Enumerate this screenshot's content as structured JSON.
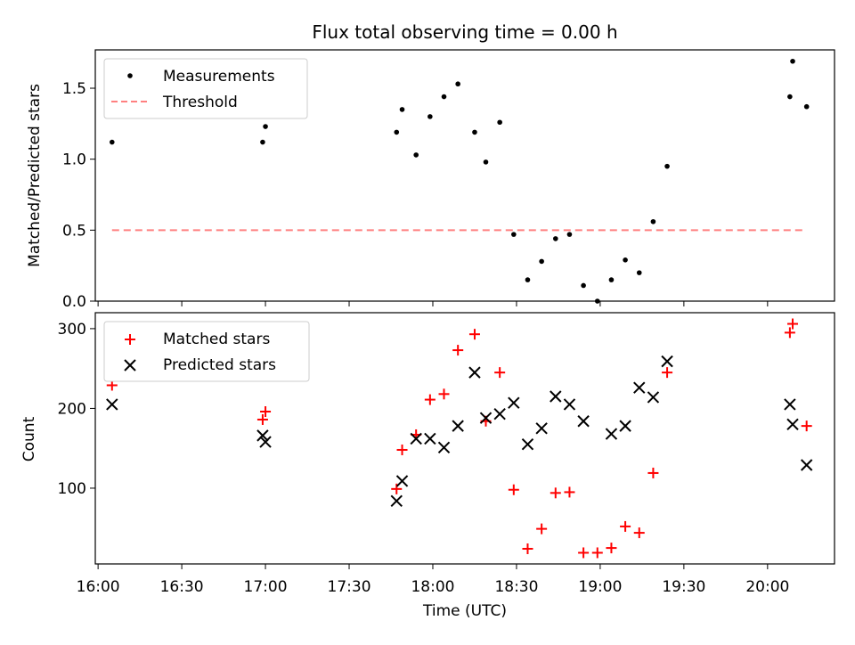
{
  "chart_data": [
    {
      "type": "scatter",
      "title": "Flux total observing time = 0.00 h",
      "xlabel": "",
      "ylabel": "Matched/Predicted stars",
      "xlim": [
        "15:59",
        "20:24"
      ],
      "ylim": [
        0,
        1.77
      ],
      "yticks": [
        "0.0",
        "0.5",
        "1.0",
        "1.5"
      ],
      "legend_position": "top-left",
      "series": [
        {
          "name": "Measurements",
          "color": "#000000",
          "marker": "dot",
          "x": [
            "16:05",
            "16:59",
            "17:00",
            "17:47",
            "17:49",
            "17:54",
            "17:59",
            "18:04",
            "18:09",
            "18:15",
            "18:19",
            "18:24",
            "18:29",
            "18:34",
            "18:39",
            "18:44",
            "18:49",
            "18:54",
            "18:59",
            "19:04",
            "19:09",
            "19:14",
            "19:19",
            "19:24",
            "20:08",
            "20:09",
            "20:14"
          ],
          "y": [
            1.12,
            1.12,
            1.23,
            1.19,
            1.35,
            1.03,
            1.3,
            1.44,
            1.53,
            1.19,
            0.98,
            1.26,
            0.47,
            0.15,
            0.28,
            0.44,
            0.47,
            0.11,
            0.0,
            0.15,
            0.29,
            0.2,
            0.56,
            0.95,
            1.44,
            1.69,
            1.37
          ]
        },
        {
          "name": "Threshold",
          "color": "#ff8080",
          "style": "dashed",
          "x": [
            "16:05",
            "20:14"
          ],
          "y": [
            0.5,
            0.5
          ]
        }
      ]
    },
    {
      "type": "scatter",
      "title": "",
      "xlabel": "Time (UTC)",
      "ylabel": "Count",
      "xlim": [
        "15:59",
        "20:24"
      ],
      "ylim": [
        5,
        320
      ],
      "xticks": [
        "16:00",
        "16:30",
        "17:00",
        "17:30",
        "18:00",
        "18:30",
        "19:00",
        "19:30",
        "20:00"
      ],
      "yticks": [
        "100",
        "200",
        "300"
      ],
      "legend_position": "top-left",
      "series": [
        {
          "name": "Matched stars",
          "color": "#ff0000",
          "marker": "plus",
          "x": [
            "16:05",
            "16:59",
            "17:00",
            "17:47",
            "17:49",
            "17:54",
            "17:59",
            "18:04",
            "18:09",
            "18:15",
            "18:19",
            "18:24",
            "18:29",
            "18:34",
            "18:39",
            "18:44",
            "18:49",
            "18:54",
            "18:59",
            "19:04",
            "19:09",
            "19:14",
            "19:19",
            "19:24",
            "20:08",
            "20:09",
            "20:14"
          ],
          "y": [
            229,
            186,
            196,
            99,
            148,
            167,
            211,
            218,
            273,
            293,
            184,
            245,
            98,
            24,
            49,
            94,
            95,
            19,
            19,
            25,
            52,
            44,
            119,
            245,
            295,
            306,
            178
          ]
        },
        {
          "name": "Predicted stars",
          "color": "#000000",
          "marker": "x",
          "x": [
            "16:05",
            "16:59",
            "17:00",
            "17:47",
            "17:49",
            "17:54",
            "17:59",
            "18:04",
            "18:09",
            "18:15",
            "18:19",
            "18:24",
            "18:29",
            "18:34",
            "18:39",
            "18:44",
            "18:49",
            "18:54",
            "18:59",
            "19:04",
            "19:09",
            "19:14",
            "19:19",
            "19:24",
            "20:08",
            "20:09",
            "20:14"
          ],
          "y": [
            205,
            166,
            158,
            84,
            109,
            162,
            162,
            151,
            178,
            245,
            188,
            193,
            207,
            155,
            175,
            215,
            205,
            184,
            null,
            168,
            178,
            226,
            214,
            259,
            205,
            180,
            129
          ]
        }
      ]
    }
  ]
}
